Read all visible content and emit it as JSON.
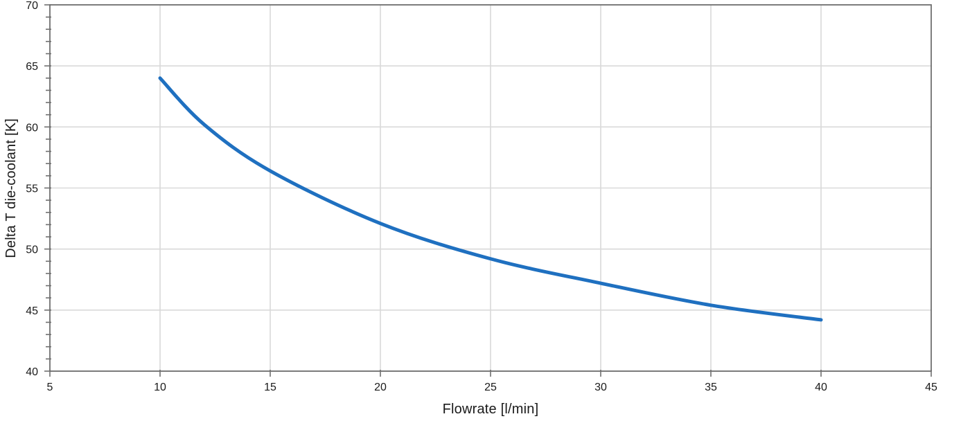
{
  "chart_data": {
    "type": "line",
    "title": "",
    "xlabel": "Flowrate [l/min]",
    "ylabel": "Delta T die-coolant [K]",
    "x": [
      10,
      12,
      15,
      20,
      25,
      30,
      35,
      40
    ],
    "series": [
      {
        "name": "Delta T die-coolant",
        "values": [
          64.0,
          60.2,
          56.4,
          52.1,
          49.2,
          47.2,
          45.4,
          44.2
        ]
      }
    ],
    "xlim": [
      5,
      45
    ],
    "ylim": [
      40,
      70
    ],
    "x_ticks": [
      5,
      10,
      15,
      20,
      25,
      30,
      35,
      40,
      45
    ],
    "y_ticks": [
      40,
      45,
      50,
      55,
      60,
      65,
      70
    ],
    "y_minor_step": 1,
    "grid": true,
    "legend": "none",
    "smooth": true,
    "line_width": 5,
    "colors": {
      "line": "#1F70C0",
      "gridline": "#D9D9D9",
      "axis": "#6F6F6F",
      "text": "#1A1A1A",
      "background": "#FFFFFF"
    }
  }
}
